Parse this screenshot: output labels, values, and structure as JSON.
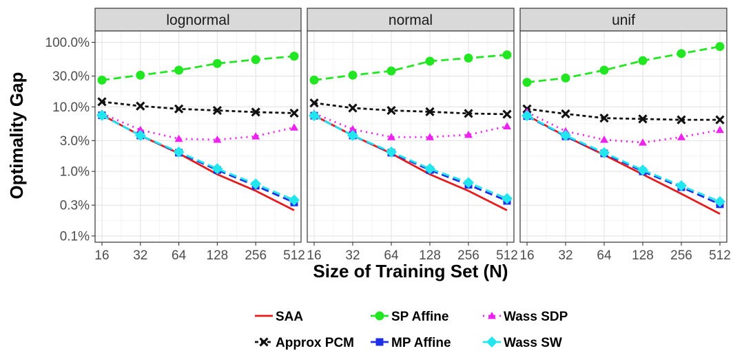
{
  "chart_data": {
    "type": "line",
    "xlabel": "Size of Training Set (N)",
    "ylabel": "Optimality Gap",
    "x": [
      16,
      32,
      64,
      128,
      256,
      512
    ],
    "x_scale": "log2",
    "y_scale": "log10",
    "ylim": [
      0.08,
      150
    ],
    "y_ticks": [
      0.1,
      0.3,
      1.0,
      3.0,
      10.0,
      30.0,
      100.0
    ],
    "y_tick_labels": [
      "0.1%",
      "0.3%",
      "1.0%",
      "3.0%",
      "10.0%",
      "30.0%",
      "100.0%"
    ],
    "x_tick_labels": [
      "16",
      "32",
      "64",
      "128",
      "256",
      "512"
    ],
    "grid": true,
    "legend_position": "bottom",
    "legend_layout": [
      [
        "SAA",
        "SP Affine",
        "Wass SDP"
      ],
      [
        "Approx PCM",
        "MP Affine",
        "Wass SW"
      ]
    ],
    "series_styles": [
      {
        "name": "SAA",
        "color": "#e41a1c",
        "dash": "solid",
        "marker": "none"
      },
      {
        "name": "SP Affine",
        "color": "#22e622",
        "dash": "dashed",
        "marker": "circle"
      },
      {
        "name": "Wass SDP",
        "color": "#ee22ee",
        "dash": "dotted",
        "marker": "triangle"
      },
      {
        "name": "Approx PCM",
        "color": "#111111",
        "dash": "dashed-fine",
        "marker": "x"
      },
      {
        "name": "MP Affine",
        "color": "#1f2fe6",
        "dash": "dashed",
        "marker": "square"
      },
      {
        "name": "Wass SW",
        "color": "#22e6ee",
        "dash": "dashed",
        "marker": "diamond"
      }
    ],
    "panels": [
      {
        "label": "lognormal",
        "series": [
          {
            "name": "SAA",
            "values": [
              7.5,
              3.6,
              1.9,
              0.9,
              0.5,
              0.25
            ]
          },
          {
            "name": "SP Affine",
            "values": [
              26,
              31,
              37,
              47,
              54,
              61
            ]
          },
          {
            "name": "Wass SDP",
            "values": [
              7.9,
              4.4,
              3.2,
              3.1,
              3.5,
              4.8
            ]
          },
          {
            "name": "Approx PCM",
            "values": [
              12.0,
              10.3,
              9.3,
              8.8,
              8.3,
              8.0
            ]
          },
          {
            "name": "MP Affine",
            "values": [
              7.4,
              3.6,
              1.95,
              1.05,
              0.6,
              0.33
            ]
          },
          {
            "name": "Wass SW",
            "values": [
              7.4,
              3.6,
              2.0,
              1.1,
              0.64,
              0.36
            ]
          }
        ]
      },
      {
        "label": "normal",
        "series": [
          {
            "name": "SAA",
            "values": [
              7.4,
              3.6,
              1.9,
              0.9,
              0.5,
              0.25
            ]
          },
          {
            "name": "SP Affine",
            "values": [
              26,
              31,
              36,
              51,
              57,
              64
            ]
          },
          {
            "name": "Wass SDP",
            "values": [
              7.9,
              4.5,
              3.4,
              3.4,
              3.7,
              5.0
            ]
          },
          {
            "name": "Approx PCM",
            "values": [
              11.5,
              9.6,
              8.8,
              8.4,
              7.9,
              7.7
            ]
          },
          {
            "name": "MP Affine",
            "values": [
              7.3,
              3.6,
              1.95,
              1.05,
              0.62,
              0.35
            ]
          },
          {
            "name": "Wass SW",
            "values": [
              7.3,
              3.6,
              2.0,
              1.1,
              0.67,
              0.38
            ]
          }
        ]
      },
      {
        "label": "unif",
        "series": [
          {
            "name": "SAA",
            "values": [
              7.4,
              3.5,
              1.8,
              0.9,
              0.45,
              0.22
            ]
          },
          {
            "name": "SP Affine",
            "values": [
              24,
              28,
              37,
              52,
              67,
              86
            ]
          },
          {
            "name": "Wass SDP",
            "values": [
              8.3,
              4.2,
              3.1,
              2.8,
              3.4,
              4.4
            ]
          },
          {
            "name": "Approx PCM",
            "values": [
              9.3,
              7.8,
              6.7,
              6.5,
              6.3,
              6.3
            ]
          },
          {
            "name": "MP Affine",
            "values": [
              7.2,
              3.5,
              1.9,
              1.0,
              0.57,
              0.31
            ]
          },
          {
            "name": "Wass SW",
            "values": [
              7.3,
              3.6,
              1.95,
              1.05,
              0.6,
              0.34
            ]
          }
        ]
      }
    ]
  }
}
